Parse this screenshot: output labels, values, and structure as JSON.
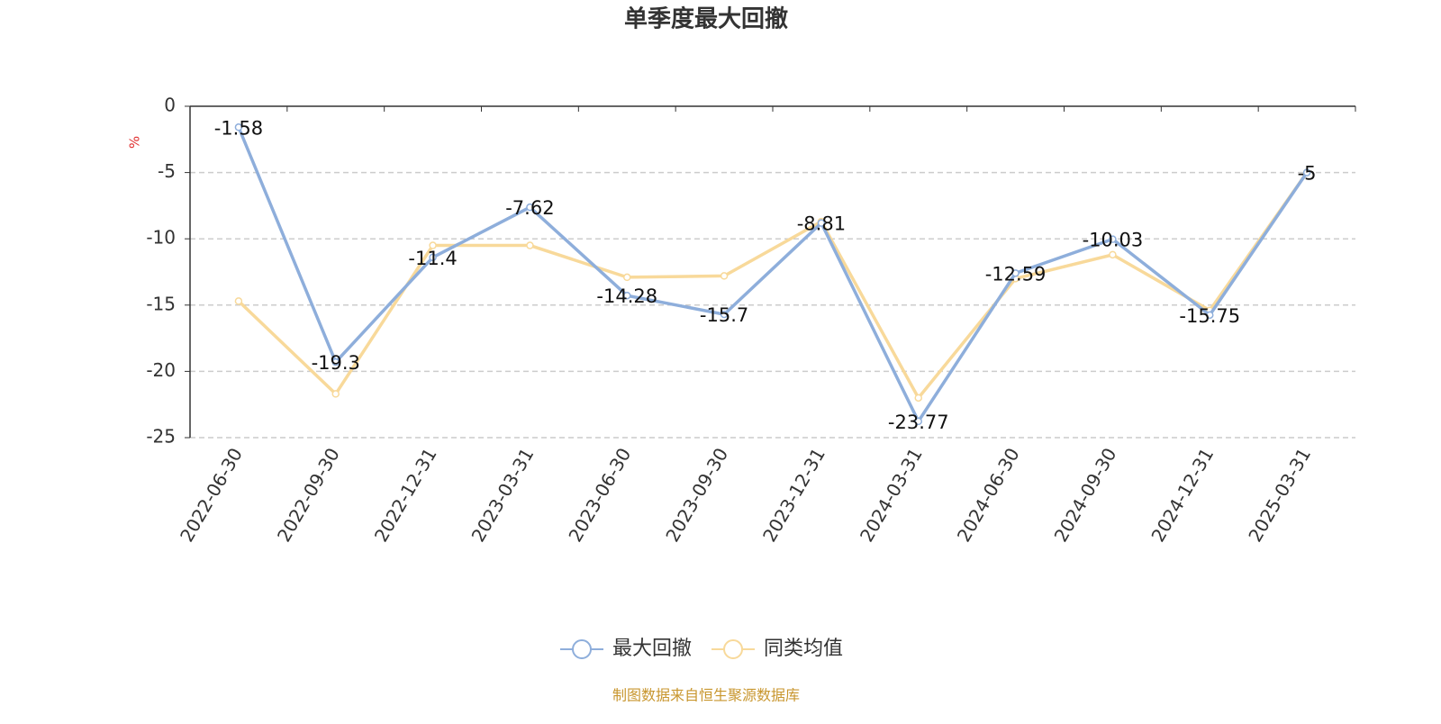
{
  "chart_data": {
    "type": "line",
    "title": "单季度最大回撤",
    "y_label": "%",
    "categories": [
      "2022-06-30",
      "2022-09-30",
      "2022-12-31",
      "2023-03-31",
      "2023-06-30",
      "2023-09-30",
      "2023-12-31",
      "2024-03-31",
      "2024-06-30",
      "2024-09-30",
      "2024-12-31",
      "2025-03-31"
    ],
    "series": [
      {
        "name": "最大回撤",
        "color": "#8eaedb",
        "show_labels": true,
        "values": [
          -1.58,
          -19.3,
          -11.4,
          -7.62,
          -14.28,
          -15.7,
          -8.81,
          -23.77,
          -12.59,
          -10.03,
          -15.75,
          -5
        ]
      },
      {
        "name": "同类均值",
        "color": "#f8d99a",
        "show_labels": false,
        "values": [
          -14.7,
          -21.7,
          -10.5,
          -10.5,
          -12.9,
          -12.8,
          -8.7,
          -22.0,
          -13.0,
          -11.2,
          -15.4,
          -5.0
        ]
      }
    ],
    "ylim": [
      -25,
      0
    ],
    "yticks": [
      0,
      -5,
      -10,
      -15,
      -20,
      -25
    ],
    "grid": true,
    "legend": "bottom",
    "source": "制图数据来自恒生聚源数据库"
  }
}
